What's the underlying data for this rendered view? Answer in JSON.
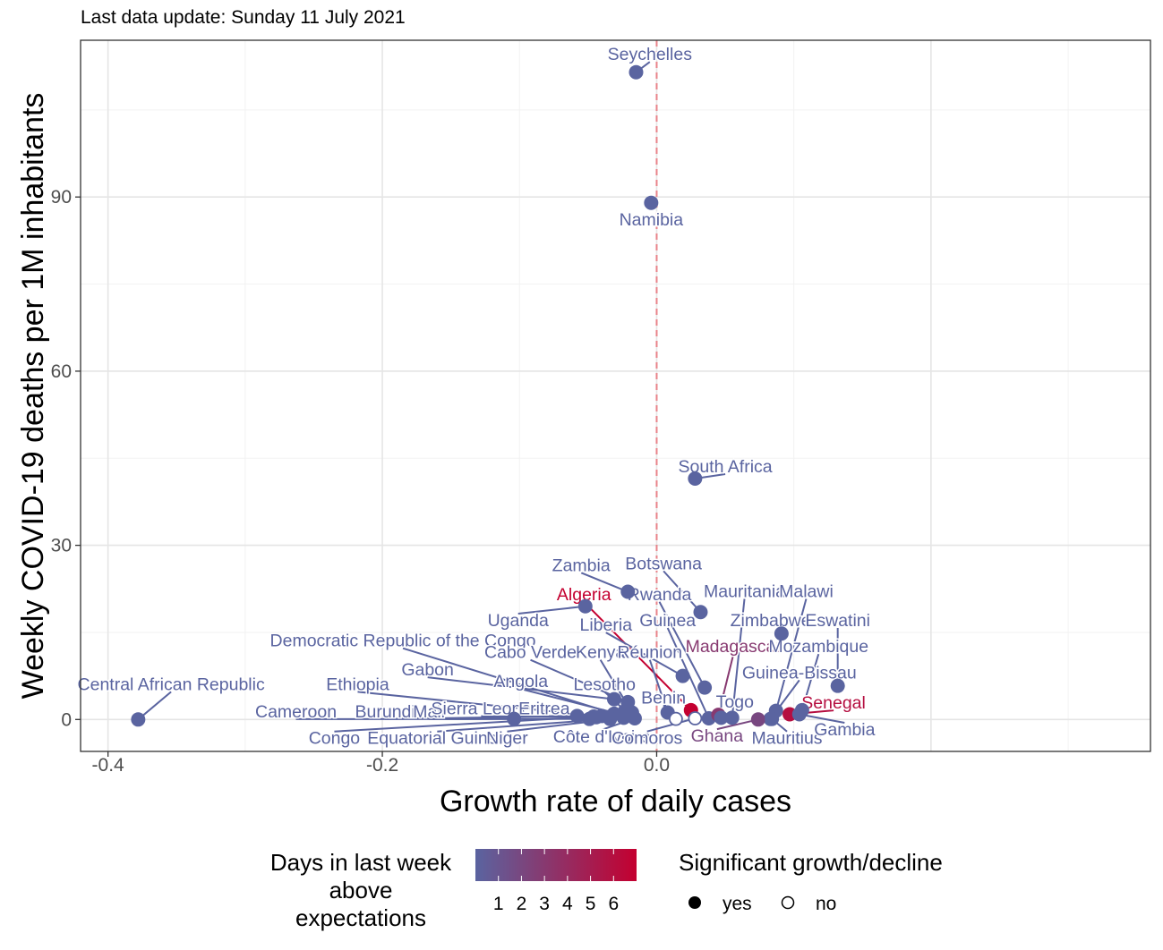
{
  "chart_data": {
    "type": "scatter",
    "subtitle": "Last data update: Sunday 11 July 2021",
    "xlabel": "Growth rate of daily cases",
    "ylabel": "Weekly COVID-19 deaths per 1M inhabitants",
    "xlim": [
      -0.42,
      0.36
    ],
    "ylim": [
      -5.5,
      117
    ],
    "xticks": [
      -0.4,
      -0.2,
      0.0
    ],
    "xtick_labels": [
      "-0.4",
      "-0.2",
      "0.0"
    ],
    "yticks": [
      0,
      30,
      60,
      90
    ],
    "ytick_labels": [
      "0",
      "30",
      "60",
      "90"
    ],
    "reference_line": {
      "x": 0,
      "style": "dashed",
      "color": "#E8838A"
    },
    "grid": true,
    "color_scale": {
      "low": "#5A64A0",
      "high": "#C40030",
      "min": 0,
      "max": 7
    },
    "legend": {
      "color_title": "Days in last week\nabove\nexpectations",
      "color_ticks": [
        "1",
        "2",
        "3",
        "4",
        "5",
        "6"
      ],
      "shape_title": "Significant growth/decline",
      "shape_items": [
        "yes",
        "no"
      ],
      "placement": "bottom"
    },
    "points": [
      {
        "country": "Seychelles",
        "x": -0.015,
        "y": 111.5,
        "days": 0,
        "significant": true
      },
      {
        "country": "Namibia",
        "x": -0.004,
        "y": 89.0,
        "days": 0,
        "significant": true
      },
      {
        "country": "South Africa",
        "x": 0.028,
        "y": 41.5,
        "days": 0,
        "significant": true
      },
      {
        "country": "Zambia",
        "x": -0.021,
        "y": 22.0,
        "days": 0,
        "significant": true
      },
      {
        "country": "Botswana",
        "x": 0.032,
        "y": 18.5,
        "days": 0,
        "significant": true
      },
      {
        "country": "Algeria",
        "x": 0.025,
        "y": 1.6,
        "days": 7,
        "significant": true
      },
      {
        "country": "Uganda",
        "x": -0.052,
        "y": 19.5,
        "days": 0,
        "significant": true
      },
      {
        "country": "Rwanda",
        "x": 0.035,
        "y": 5.5,
        "days": 0,
        "significant": true
      },
      {
        "country": "Mauritania",
        "x": 0.055,
        "y": 0.3,
        "days": 0,
        "significant": true
      },
      {
        "country": "Malawi",
        "x": 0.087,
        "y": 1.5,
        "days": 0,
        "significant": true
      },
      {
        "country": "Liberia",
        "x": 0.019,
        "y": 7.5,
        "days": 0,
        "significant": true
      },
      {
        "country": "Guinea",
        "x": 0.038,
        "y": 0.2,
        "days": 0,
        "significant": true
      },
      {
        "country": "Zimbabwe",
        "x": 0.091,
        "y": 14.8,
        "days": 0,
        "significant": true
      },
      {
        "country": "Eswatini",
        "x": 0.132,
        "y": 5.8,
        "days": 0,
        "significant": true
      },
      {
        "country": "Democratic Republic of the Congo",
        "x": -0.031,
        "y": 1.0,
        "days": 0,
        "significant": true
      },
      {
        "country": "Madagascar",
        "x": 0.045,
        "y": 0.8,
        "days": 3,
        "significant": true
      },
      {
        "country": "Mozambique",
        "x": 0.106,
        "y": 1.6,
        "days": 0,
        "significant": true
      },
      {
        "country": "Cabo Verde",
        "x": -0.021,
        "y": 3.0,
        "days": 0,
        "significant": true
      },
      {
        "country": "Kenya",
        "x": -0.018,
        "y": 1.2,
        "days": 0,
        "significant": true
      },
      {
        "country": "Réunion",
        "x": 0.008,
        "y": 1.2,
        "days": 0,
        "significant": true
      },
      {
        "country": "Guinea-Bissau",
        "x": 0.083,
        "y": 0.1,
        "days": 0,
        "significant": true
      },
      {
        "country": "Gabon",
        "x": -0.031,
        "y": 3.5,
        "days": 0,
        "significant": true
      },
      {
        "country": "Angola",
        "x": -0.025,
        "y": 0.8,
        "days": 0,
        "significant": true
      },
      {
        "country": "Lesotho",
        "x": -0.023,
        "y": 1.5,
        "days": 0,
        "significant": true
      },
      {
        "country": "Ethiopia",
        "x": -0.035,
        "y": 0.4,
        "days": 0,
        "significant": true
      },
      {
        "country": "Benin",
        "x": 0.014,
        "y": 0.1,
        "days": 0,
        "significant": false
      },
      {
        "country": "Togo",
        "x": 0.047,
        "y": 0.3,
        "days": 0,
        "significant": true
      },
      {
        "country": "Senegal",
        "x": 0.097,
        "y": 0.9,
        "days": 6,
        "significant": true
      },
      {
        "country": "Central African Republic",
        "x": -0.378,
        "y": 0.0,
        "days": 0,
        "significant": true
      },
      {
        "country": "Cameroon",
        "x": -0.104,
        "y": 0.1,
        "days": 0,
        "significant": true
      },
      {
        "country": "Burundi",
        "x": -0.058,
        "y": 0.6,
        "days": 0,
        "significant": true
      },
      {
        "country": "Mali",
        "x": -0.049,
        "y": 0.1,
        "days": 0,
        "significant": true
      },
      {
        "country": "Sierra Leone",
        "x": -0.044,
        "y": 0.4,
        "days": 0,
        "significant": true
      },
      {
        "country": "Eritrea",
        "x": -0.04,
        "y": 0.6,
        "days": 0,
        "significant": true
      },
      {
        "country": "Congo",
        "x": -0.046,
        "y": 0.5,
        "days": 0,
        "significant": true
      },
      {
        "country": "Equatorial Guinea",
        "x": -0.034,
        "y": 0.1,
        "days": 0,
        "significant": true
      },
      {
        "country": "Niger",
        "x": -0.024,
        "y": 0.3,
        "days": 0,
        "significant": true
      },
      {
        "country": "Côte d'Ivoire",
        "x": -0.016,
        "y": 0.2,
        "days": 0,
        "significant": true
      },
      {
        "country": "Comoros",
        "x": 0.028,
        "y": 0.2,
        "days": 0,
        "significant": false
      },
      {
        "country": "Ghana",
        "x": 0.074,
        "y": 0.0,
        "days": 2,
        "significant": true
      },
      {
        "country": "Mauritius",
        "x": 0.084,
        "y": 0.1,
        "days": 0,
        "significant": true
      },
      {
        "country": "Gambia",
        "x": 0.104,
        "y": 0.9,
        "days": 0,
        "significant": true
      }
    ]
  }
}
